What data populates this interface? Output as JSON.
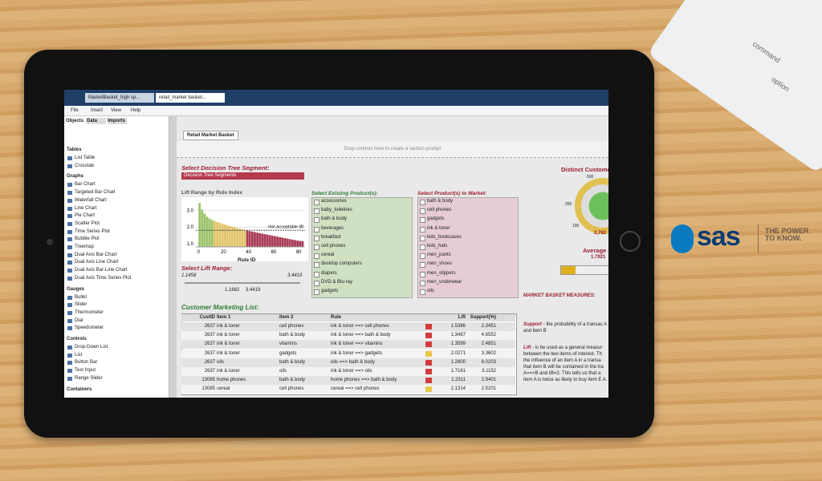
{
  "app_tabs": [
    "MarketBasket_high sp...",
    "retail_market basket..."
  ],
  "menu": [
    "File",
    "Insert",
    "View",
    "Help"
  ],
  "panel_tabs": [
    "Objects",
    "Data",
    "Imports"
  ],
  "objects": [
    {
      "heading": "Tables",
      "items": [
        "List Table",
        "Crosstab"
      ]
    },
    {
      "heading": "Graphs",
      "items": [
        "Bar Chart",
        "Targeted Bar Chart",
        "Waterfall Chart",
        "Line Chart",
        "Pie Chart",
        "Scatter Plot",
        "Time Series Plot",
        "Bubble Plot",
        "Treemap",
        "Dual Axis Bar Chart",
        "Dual Axis Line Chart",
        "Dual Axis Bar-Line Chart",
        "Dual Axis Time Series Plot"
      ]
    },
    {
      "heading": "Gauges",
      "items": [
        "Bullet",
        "Slider",
        "Thermometer",
        "Dial",
        "Speedometer"
      ]
    },
    {
      "heading": "Controls",
      "items": [
        "Drop-Down List",
        "List",
        "Button Bar",
        "Text Input",
        "Range Slider"
      ]
    },
    {
      "heading": "Containers",
      "items": []
    }
  ],
  "section_tab": "Retail Market Basket",
  "drop_prompt": "Drop controls here to create a section prompt",
  "segment": {
    "title": "Select Decision Tree Segment:",
    "value": "Decision Tree Segments"
  },
  "lift_chart": {
    "type": "bar",
    "title": "Lift Range by Rule Index",
    "x_label": "Rule ID",
    "xlim": [
      -2,
      85
    ],
    "xticks": [
      0,
      20,
      40,
      60,
      80
    ],
    "ylim": [
      0.8,
      3.6
    ],
    "yticks": [
      {
        "value": 1,
        "label": "1.0"
      },
      {
        "value": 2,
        "label": "2.0"
      },
      {
        "value": 3,
        "label": "3.0"
      }
    ],
    "reference_line": {
      "value": 1.8,
      "label": "min acceptable lift"
    },
    "series": [
      {
        "color": "#9cc46a",
        "x": [
          1,
          3,
          5,
          7,
          9,
          11
        ],
        "values": [
          3.44,
          3.05,
          2.8,
          2.62,
          2.5,
          2.42
        ]
      },
      {
        "color": "#e3c46a",
        "x": [
          13,
          15,
          17,
          19,
          21,
          23,
          25,
          27,
          29,
          31,
          33,
          35,
          37
        ],
        "values": [
          2.36,
          2.3,
          2.25,
          2.2,
          2.15,
          2.1,
          2.06,
          2.02,
          1.98,
          1.94,
          1.9,
          1.86,
          1.82
        ]
      },
      {
        "color": "#a83a55",
        "x": [
          39,
          41,
          43,
          45,
          47,
          49,
          51,
          53,
          55,
          57,
          59,
          61,
          63,
          65,
          67,
          69,
          71,
          73,
          75,
          77,
          79,
          81,
          83
        ],
        "values": [
          1.78,
          1.75,
          1.72,
          1.69,
          1.66,
          1.63,
          1.6,
          1.57,
          1.54,
          1.51,
          1.48,
          1.45,
          1.42,
          1.39,
          1.36,
          1.33,
          1.3,
          1.27,
          1.24,
          1.21,
          1.18,
          1.16,
          1.15
        ]
      }
    ]
  },
  "lift_range": {
    "title": "Select Lift Range:",
    "min": "1.1458",
    "max": "3.4419",
    "low": "1.1682",
    "high": "3.4419"
  },
  "existing_products": {
    "title": "Select Existing Product(s):",
    "items": [
      "accessories",
      "baby_toiletries",
      "bath & body",
      "beverages",
      "breakfast",
      "cell phones",
      "cereal",
      "desktop computers",
      "diapers",
      "DVD & Blu-ray",
      "gadgets"
    ]
  },
  "market_products": {
    "title": "Select Product(s) to Market:",
    "items": [
      "bath & body",
      "cell phones",
      "gadgets",
      "ink & toner",
      "kids_bookcases",
      "kids_hats",
      "men_pants",
      "men_shoes",
      "men_slippers",
      "men_underwear",
      "oils"
    ]
  },
  "table": {
    "title": "Customer Marketing List:",
    "headers": [
      "CustID",
      "Item 1",
      "Item 2",
      "Rule",
      "Lift",
      "Support(%)"
    ],
    "rows": [
      [
        "2637",
        "ink & toner",
        "cell phones",
        "ink & toner ==> cell phones",
        "1.5386",
        "2.3451"
      ],
      [
        "2637",
        "ink & toner",
        "bath & body",
        "ink & toner ==> bath & body",
        "1.3467",
        "4.6552"
      ],
      [
        "2637",
        "ink & toner",
        "vitamins",
        "ink & toner ==> vitamins",
        "1.3599",
        "2.4851"
      ],
      [
        "2637",
        "ink & toner",
        "gadgets",
        "ink & toner ==> gadgets",
        "2.0271",
        "3.3602"
      ],
      [
        "2637",
        "oils",
        "bath & body",
        "oils ==> bath & body",
        "1.2800",
        "6.0203"
      ],
      [
        "2637",
        "ink & toner",
        "oils",
        "ink & toner ==> oils",
        "1.7161",
        "3.1152"
      ],
      [
        "13085",
        "home phones",
        "bath & body",
        "home phones ==> bath & body",
        "1.2311",
        "2.9401"
      ],
      [
        "13085",
        "cereal",
        "cell phones",
        "cereal ==> cell phones",
        "2.1314",
        "2.5201"
      ]
    ],
    "status_colors": [
      "#d23b3b",
      "#d23b3b",
      "#d23b3b",
      "#e8c84a",
      "#d23b3b",
      "#d23b3b",
      "#d23b3b",
      "#e8c84a"
    ]
  },
  "right_panel": {
    "distinct_title": "Distinct Custome",
    "gauge_labels": [
      "500",
      "250",
      "100"
    ],
    "distinct_value": "2,782",
    "average_title": "Average Li",
    "average_value": "1.7921",
    "measures_title": "MARKET BASKET MEASURES:",
    "support_term": "Support",
    "support_text": " - the probability of a transac A and item B",
    "lift_term": "Lift",
    "lift_text": " - is be used as a general measur between the two items of interest. Th the influence of an item A in a transa that item B will be contained in the tra A==>B and lift=2. This tells us that a item A is twice as likely to buy item E A."
  },
  "keyboard": [
    "command",
    "option"
  ],
  "logo": {
    "brand": "sas",
    "tagline": "THE POWER TO KNOW."
  }
}
